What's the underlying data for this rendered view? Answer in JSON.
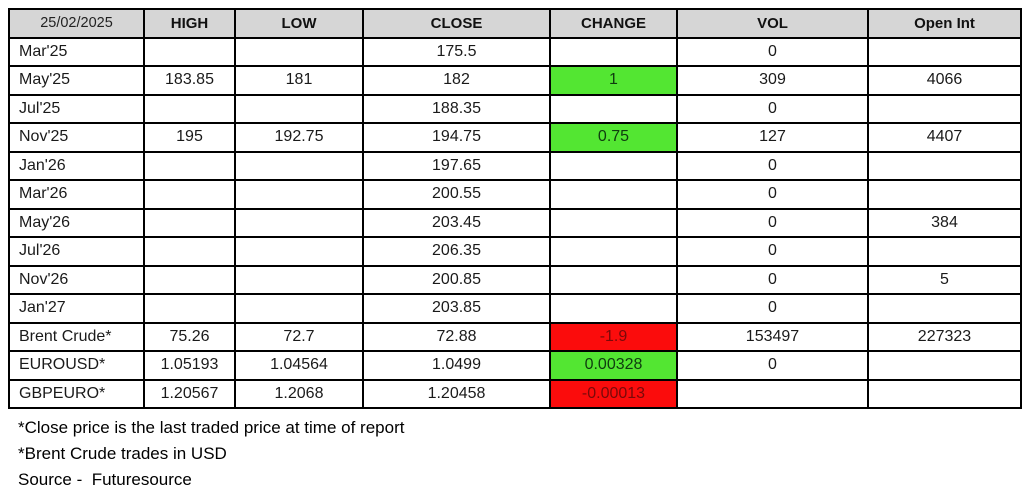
{
  "report_date": "25/02/2025",
  "colors": {
    "header_bg": "#d6d6d6",
    "border": "#000000",
    "positive_bg": "#53e632",
    "positive_text": "#0f3c0f",
    "negative_bg": "#fb0c0c",
    "negative_text": "#7a0909"
  },
  "chart_data": {
    "type": "table",
    "title": "Futures prices table dated 25/02/2025",
    "columns": [
      "25/02/2025",
      "HIGH",
      "LOW",
      "CLOSE",
      "CHANGE",
      "VOL",
      "Open Int"
    ],
    "rows": [
      {
        "name": "Mar'25",
        "high": "",
        "low": "",
        "close": "175.5",
        "change": "",
        "change_color": "",
        "vol": "0",
        "open_int": ""
      },
      {
        "name": "May'25",
        "high": "183.85",
        "low": "181",
        "close": "182",
        "change": "1",
        "change_color": "green",
        "vol": "309",
        "open_int": "4066"
      },
      {
        "name": "Jul'25",
        "high": "",
        "low": "",
        "close": "188.35",
        "change": "",
        "change_color": "",
        "vol": "0",
        "open_int": ""
      },
      {
        "name": "Nov'25",
        "high": "195",
        "low": "192.75",
        "close": "194.75",
        "change": "0.75",
        "change_color": "green",
        "vol": "127",
        "open_int": "4407"
      },
      {
        "name": "Jan'26",
        "high": "",
        "low": "",
        "close": "197.65",
        "change": "",
        "change_color": "",
        "vol": "0",
        "open_int": ""
      },
      {
        "name": "Mar'26",
        "high": "",
        "low": "",
        "close": "200.55",
        "change": "",
        "change_color": "",
        "vol": "0",
        "open_int": ""
      },
      {
        "name": "May'26",
        "high": "",
        "low": "",
        "close": "203.45",
        "change": "",
        "change_color": "",
        "vol": "0",
        "open_int": "384"
      },
      {
        "name": "Jul'26",
        "high": "",
        "low": "",
        "close": "206.35",
        "change": "",
        "change_color": "",
        "vol": "0",
        "open_int": ""
      },
      {
        "name": "Nov'26",
        "high": "",
        "low": "",
        "close": "200.85",
        "change": "",
        "change_color": "",
        "vol": "0",
        "open_int": "5"
      },
      {
        "name": "Jan'27",
        "high": "",
        "low": "",
        "close": "203.85",
        "change": "",
        "change_color": "",
        "vol": "0",
        "open_int": ""
      },
      {
        "name": "Brent Crude*",
        "high": "75.26",
        "low": "72.7",
        "close": "72.88",
        "change": "-1.9",
        "change_color": "red",
        "vol": "153497",
        "open_int": "227323"
      },
      {
        "name": "EUROUSD*",
        "high": "1.05193",
        "low": "1.04564",
        "close": "1.0499",
        "change": "0.00328",
        "change_color": "green",
        "vol": "0",
        "open_int": ""
      },
      {
        "name": "GBPEURO*",
        "high": "1.20567",
        "low": "1.2068",
        "close": "1.20458",
        "change": "-0.00013",
        "change_color": "red",
        "vol": "",
        "open_int": ""
      }
    ]
  },
  "footnotes": [
    "*Close price is the last traded price at time of report",
    "*Brent Crude trades in USD",
    "Source -  Futuresource"
  ]
}
